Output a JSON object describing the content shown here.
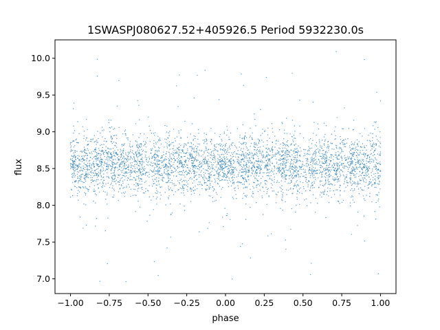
{
  "chart_data": {
    "type": "scatter",
    "title": "1SWASPJ080627.52+405926.5 Period 5932230.0s",
    "xlabel": "phase",
    "ylabel": "flux",
    "xlim": [
      -1.1,
      1.1
    ],
    "ylim": [
      6.8,
      10.25
    ],
    "xticks": [
      -1.0,
      -0.75,
      -0.5,
      -0.25,
      0.0,
      0.25,
      0.5,
      0.75,
      1.0
    ],
    "xtick_labels": [
      "−1.00",
      "−0.75",
      "−0.50",
      "−0.25",
      "0.00",
      "0.25",
      "0.50",
      "0.75",
      "1.00"
    ],
    "yticks": [
      7.0,
      7.5,
      8.0,
      8.5,
      9.0,
      9.5,
      10.0
    ],
    "ytick_labels": [
      "7.0",
      "7.5",
      "8.0",
      "8.5",
      "9.0",
      "9.5",
      "10.0"
    ],
    "grid": false,
    "marker_color": "#1f77b4",
    "data_summary": {
      "x_range": [
        -1.0,
        1.0
      ],
      "flux_median": 8.55,
      "flux_core_range": [
        8.0,
        9.0
      ],
      "flux_extreme_range": [
        6.95,
        10.1
      ],
      "symmetric_about_phase_zero": true
    },
    "band_centers": [
      -0.97,
      -0.9,
      -0.82,
      -0.73,
      -0.65,
      -0.56,
      -0.45,
      -0.37,
      -0.28,
      -0.2,
      -0.12,
      -0.03,
      0.03,
      0.12,
      0.2,
      0.28,
      0.37,
      0.45,
      0.56,
      0.65,
      0.73,
      0.82,
      0.9,
      0.97
    ]
  }
}
